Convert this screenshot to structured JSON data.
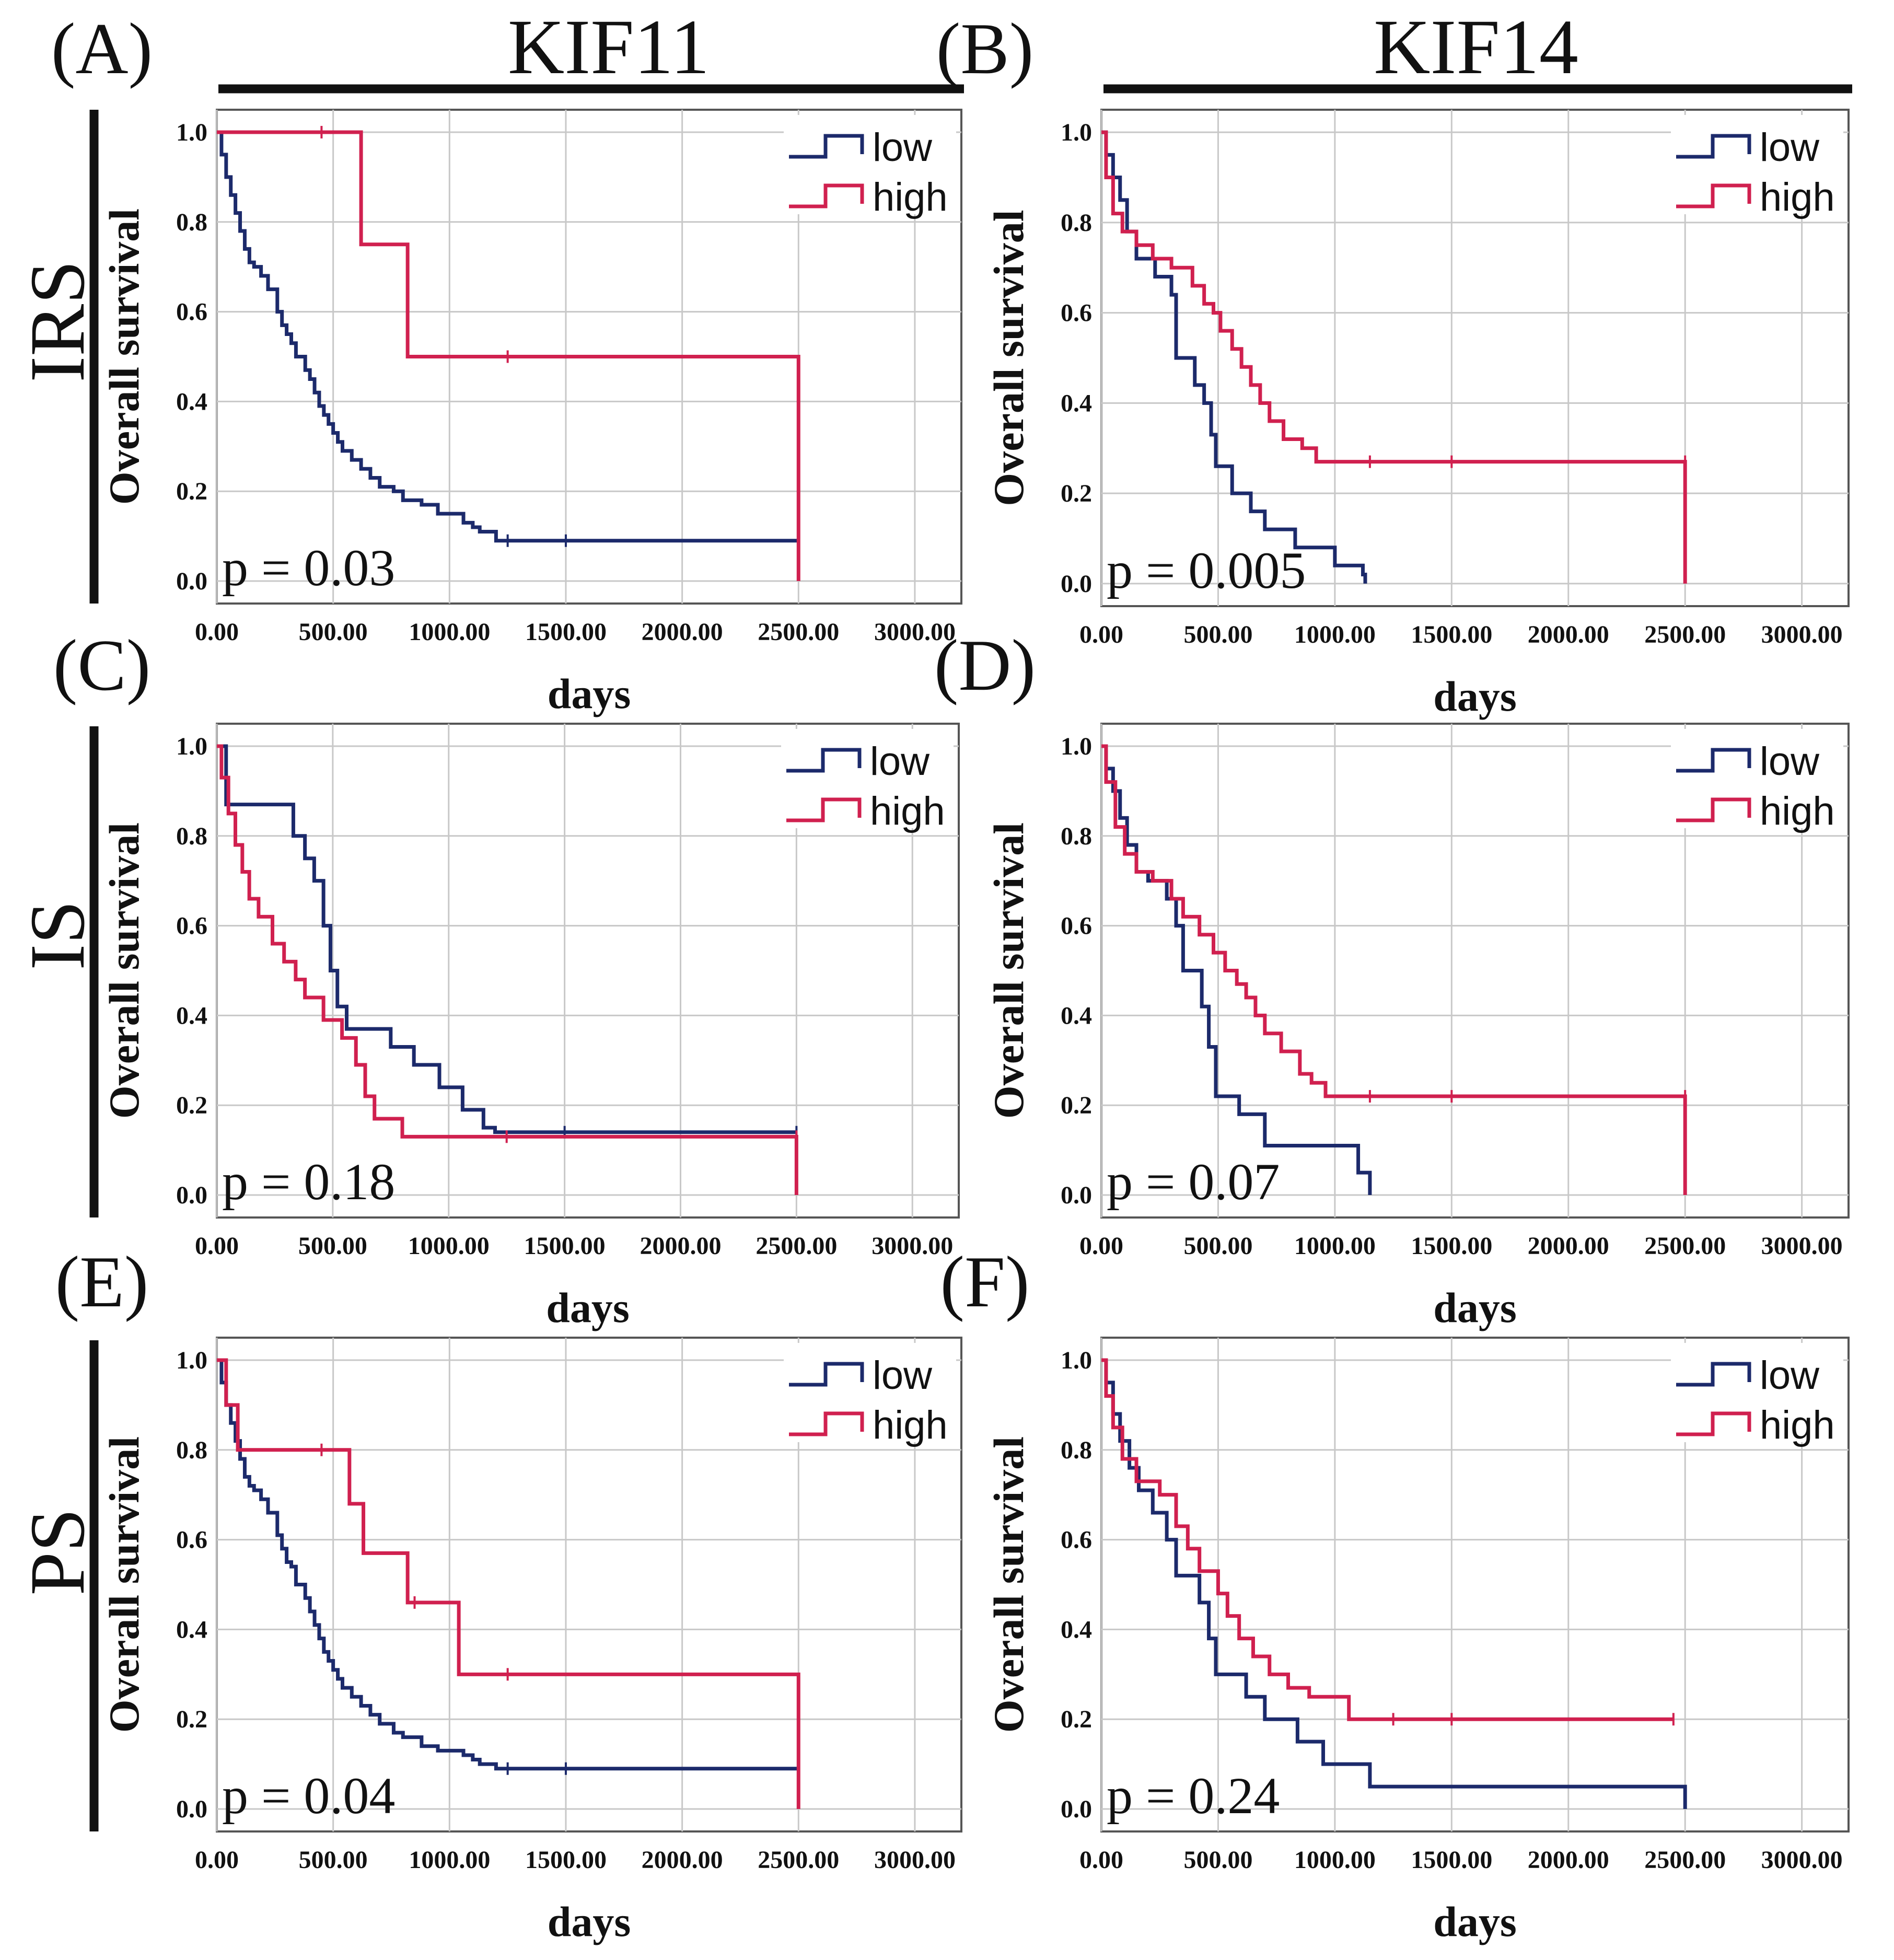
{
  "columns": [
    {
      "gene": "KIF11"
    },
    {
      "gene": "KIF14"
    }
  ],
  "rows": [
    {
      "label": "IRS"
    },
    {
      "label": "IS"
    },
    {
      "label": "PS"
    }
  ],
  "colors": {
    "low": "#1c2a6b",
    "high": "#d0204f",
    "grid": "#c8c8c8",
    "frame": "#555555",
    "text": "#111111"
  },
  "chart_data": [
    {
      "panel": "(A)",
      "type": "line",
      "gene": "KIF11",
      "group": "IRS",
      "xlabel": "days",
      "ylabel": "Overall survival",
      "xlim": [
        0,
        3200
      ],
      "ylim": [
        -0.05,
        1.05
      ],
      "xticks": [
        "0.00",
        "500.00",
        "1000.00",
        "1500.00",
        "2000.00",
        "2500.00",
        "3000.00"
      ],
      "yticks": [
        "0.0",
        "0.2",
        "0.4",
        "0.6",
        "0.8",
        "1.0"
      ],
      "legend": [
        "low",
        "high"
      ],
      "legend_position": "top-right",
      "pvalue": "p = 0.03",
      "series": [
        {
          "name": "low",
          "x": [
            0,
            20,
            40,
            60,
            80,
            100,
            120,
            140,
            160,
            190,
            220,
            260,
            280,
            300,
            320,
            340,
            380,
            400,
            420,
            440,
            460,
            480,
            500,
            520,
            540,
            580,
            620,
            660,
            700,
            760,
            800,
            880,
            950,
            1060,
            1100,
            1130,
            1200,
            2500
          ],
          "y": [
            1.0,
            0.95,
            0.9,
            0.86,
            0.82,
            0.78,
            0.74,
            0.71,
            0.7,
            0.68,
            0.65,
            0.6,
            0.57,
            0.55,
            0.53,
            0.5,
            0.47,
            0.45,
            0.42,
            0.39,
            0.37,
            0.35,
            0.33,
            0.31,
            0.29,
            0.27,
            0.25,
            0.23,
            0.21,
            0.2,
            0.18,
            0.17,
            0.15,
            0.13,
            0.12,
            0.11,
            0.09,
            0.09
          ],
          "censors": [
            [
              1250,
              0.09
            ],
            [
              1500,
              0.09
            ],
            [
              2500,
              0.09
            ]
          ]
        },
        {
          "name": "high",
          "x": [
            0,
            620,
            820,
            2500,
            2500
          ],
          "y": [
            1.0,
            0.75,
            0.5,
            0.5,
            0.0
          ],
          "censors": [
            [
              450,
              1.0
            ],
            [
              1250,
              0.5
            ]
          ]
        }
      ]
    },
    {
      "panel": "(B)",
      "type": "line",
      "gene": "KIF14",
      "group": "IRS",
      "xlabel": "days",
      "ylabel": "Overall survival",
      "xlim": [
        0,
        3200
      ],
      "ylim": [
        -0.05,
        1.05
      ],
      "xticks": [
        "0.00",
        "500.00",
        "1000.00",
        "1500.00",
        "2000.00",
        "2500.00",
        "3000.00"
      ],
      "yticks": [
        "0.0",
        "0.2",
        "0.4",
        "0.6",
        "0.8",
        "1.0"
      ],
      "legend": [
        "low",
        "high"
      ],
      "legend_position": "top-right",
      "pvalue": "p = 0.005",
      "series": [
        {
          "name": "low",
          "x": [
            0,
            20,
            50,
            80,
            110,
            150,
            230,
            300,
            320,
            400,
            440,
            470,
            490,
            560,
            640,
            700,
            830,
            1000,
            1120,
            1130
          ],
          "y": [
            1.0,
            0.95,
            0.9,
            0.85,
            0.78,
            0.72,
            0.68,
            0.64,
            0.5,
            0.44,
            0.4,
            0.33,
            0.26,
            0.2,
            0.16,
            0.12,
            0.08,
            0.04,
            0.02,
            0.0
          ],
          "censors": []
        },
        {
          "name": "high",
          "x": [
            0,
            20,
            50,
            90,
            150,
            220,
            300,
            390,
            440,
            480,
            510,
            560,
            600,
            640,
            680,
            720,
            780,
            860,
            920,
            2500,
            2500
          ],
          "y": [
            1.0,
            0.9,
            0.82,
            0.78,
            0.75,
            0.72,
            0.7,
            0.66,
            0.62,
            0.6,
            0.56,
            0.52,
            0.48,
            0.44,
            0.4,
            0.36,
            0.32,
            0.3,
            0.27,
            0.27,
            0.0
          ],
          "censors": [
            [
              1150,
              0.27
            ],
            [
              1500,
              0.27
            ],
            [
              2500,
              0.27
            ]
          ]
        }
      ]
    },
    {
      "panel": "(C)",
      "type": "line",
      "gene": "KIF11",
      "group": "IS",
      "xlabel": "days",
      "ylabel": "Overall survival",
      "xlim": [
        0,
        3200
      ],
      "ylim": [
        -0.05,
        1.05
      ],
      "xticks": [
        "0.00",
        "500.00",
        "1000.00",
        "1500.00",
        "2000.00",
        "2500.00",
        "3000.00"
      ],
      "yticks": [
        "0.0",
        "0.2",
        "0.4",
        "0.6",
        "0.8",
        "1.0"
      ],
      "legend": [
        "low",
        "high"
      ],
      "legend_position": "top-right",
      "pvalue": "p = 0.18",
      "series": [
        {
          "name": "low",
          "x": [
            0,
            40,
            330,
            380,
            420,
            460,
            490,
            520,
            560,
            750,
            850,
            960,
            1060,
            1150,
            1200,
            2500
          ],
          "y": [
            1.0,
            0.87,
            0.8,
            0.75,
            0.7,
            0.6,
            0.5,
            0.42,
            0.37,
            0.33,
            0.29,
            0.24,
            0.19,
            0.15,
            0.14,
            0.14
          ],
          "censors": [
            [
              1500,
              0.14
            ],
            [
              2500,
              0.14
            ]
          ]
        },
        {
          "name": "high",
          "x": [
            0,
            20,
            50,
            80,
            110,
            140,
            180,
            240,
            290,
            340,
            380,
            460,
            540,
            600,
            640,
            680,
            800,
            2500,
            2500
          ],
          "y": [
            1.0,
            0.93,
            0.85,
            0.78,
            0.72,
            0.66,
            0.62,
            0.56,
            0.52,
            0.48,
            0.44,
            0.39,
            0.35,
            0.29,
            0.22,
            0.17,
            0.13,
            0.13,
            0.0
          ],
          "censors": [
            [
              1250,
              0.13
            ],
            [
              2500,
              0.13
            ]
          ]
        }
      ]
    },
    {
      "panel": "(D)",
      "type": "line",
      "gene": "KIF14",
      "group": "IS",
      "xlabel": "days",
      "ylabel": "Overall survival",
      "xlim": [
        0,
        3200
      ],
      "ylim": [
        -0.05,
        1.05
      ],
      "xticks": [
        "0.00",
        "500.00",
        "1000.00",
        "1500.00",
        "2000.00",
        "2500.00",
        "3000.00"
      ],
      "yticks": [
        "0.0",
        "0.2",
        "0.4",
        "0.6",
        "0.8",
        "1.0"
      ],
      "legend": [
        "low",
        "high"
      ],
      "legend_position": "top-right",
      "pvalue": "p = 0.07",
      "series": [
        {
          "name": "low",
          "x": [
            0,
            20,
            50,
            80,
            110,
            150,
            200,
            280,
            320,
            350,
            430,
            460,
            490,
            590,
            700,
            1000,
            1100,
            1150
          ],
          "y": [
            1.0,
            0.95,
            0.9,
            0.84,
            0.78,
            0.72,
            0.7,
            0.66,
            0.6,
            0.5,
            0.42,
            0.33,
            0.22,
            0.18,
            0.11,
            0.11,
            0.05,
            0.0
          ],
          "censors": []
        },
        {
          "name": "high",
          "x": [
            0,
            20,
            60,
            100,
            150,
            220,
            300,
            350,
            420,
            480,
            530,
            580,
            620,
            660,
            700,
            770,
            850,
            900,
            960,
            2500,
            2500
          ],
          "y": [
            1.0,
            0.92,
            0.82,
            0.76,
            0.72,
            0.7,
            0.66,
            0.62,
            0.58,
            0.54,
            0.5,
            0.47,
            0.44,
            0.4,
            0.36,
            0.32,
            0.27,
            0.25,
            0.22,
            0.22,
            0.0
          ],
          "censors": [
            [
              1150,
              0.22
            ],
            [
              1500,
              0.22
            ],
            [
              2500,
              0.22
            ]
          ]
        }
      ]
    },
    {
      "panel": "(E)",
      "type": "line",
      "gene": "KIF11",
      "group": "PS",
      "xlabel": "days",
      "ylabel": "Overall survival",
      "xlim": [
        0,
        3200
      ],
      "ylim": [
        -0.05,
        1.05
      ],
      "xticks": [
        "0.00",
        "500.00",
        "1000.00",
        "1500.00",
        "2000.00",
        "2500.00",
        "3000.00"
      ],
      "yticks": [
        "0.0",
        "0.2",
        "0.4",
        "0.6",
        "0.8",
        "1.0"
      ],
      "legend": [
        "low",
        "high"
      ],
      "legend_position": "top-right",
      "pvalue": "p = 0.04",
      "series": [
        {
          "name": "low",
          "x": [
            0,
            20,
            40,
            60,
            80,
            100,
            120,
            140,
            160,
            190,
            220,
            260,
            280,
            300,
            320,
            340,
            380,
            400,
            420,
            440,
            460,
            480,
            500,
            520,
            540,
            580,
            620,
            660,
            700,
            760,
            800,
            880,
            950,
            1060,
            1100,
            1130,
            1200,
            2500
          ],
          "y": [
            1.0,
            0.95,
            0.9,
            0.86,
            0.82,
            0.78,
            0.74,
            0.72,
            0.71,
            0.69,
            0.66,
            0.61,
            0.58,
            0.55,
            0.54,
            0.5,
            0.47,
            0.44,
            0.41,
            0.38,
            0.35,
            0.33,
            0.31,
            0.29,
            0.27,
            0.25,
            0.23,
            0.21,
            0.19,
            0.17,
            0.16,
            0.14,
            0.13,
            0.12,
            0.11,
            0.1,
            0.09,
            0.09
          ],
          "censors": [
            [
              1250,
              0.09
            ],
            [
              1500,
              0.09
            ],
            [
              2500,
              0.09
            ]
          ]
        },
        {
          "name": "high",
          "x": [
            0,
            40,
            90,
            570,
            630,
            820,
            1040,
            2500,
            2500
          ],
          "y": [
            1.0,
            0.9,
            0.8,
            0.68,
            0.57,
            0.46,
            0.3,
            0.3,
            0.0
          ],
          "censors": [
            [
              450,
              0.8
            ],
            [
              850,
              0.46
            ],
            [
              1250,
              0.3
            ]
          ]
        }
      ]
    },
    {
      "panel": "(F)",
      "type": "line",
      "gene": "KIF14",
      "group": "PS",
      "xlabel": "days",
      "ylabel": "Overall survival",
      "xlim": [
        0,
        3200
      ],
      "ylim": [
        -0.05,
        1.05
      ],
      "xticks": [
        "0.00",
        "500.00",
        "1000.00",
        "1500.00",
        "2000.00",
        "2500.00",
        "3000.00"
      ],
      "yticks": [
        "0.0",
        "0.2",
        "0.4",
        "0.6",
        "0.8",
        "1.0"
      ],
      "legend": [
        "low",
        "high"
      ],
      "legend_position": "top-right",
      "pvalue": "p = 0.24",
      "series": [
        {
          "name": "low",
          "x": [
            0,
            20,
            50,
            80,
            120,
            160,
            220,
            280,
            320,
            420,
            460,
            490,
            620,
            700,
            840,
            950,
            1150,
            2500,
            2500
          ],
          "y": [
            1.0,
            0.95,
            0.88,
            0.82,
            0.76,
            0.71,
            0.66,
            0.6,
            0.52,
            0.46,
            0.38,
            0.3,
            0.25,
            0.2,
            0.15,
            0.1,
            0.05,
            0.05,
            0.0
          ],
          "censors": []
        },
        {
          "name": "high",
          "x": [
            0,
            20,
            50,
            90,
            150,
            200,
            250,
            320,
            370,
            420,
            500,
            540,
            590,
            650,
            720,
            800,
            890,
            1060,
            2450
          ],
          "y": [
            1.0,
            0.92,
            0.85,
            0.78,
            0.73,
            0.73,
            0.7,
            0.63,
            0.58,
            0.53,
            0.48,
            0.43,
            0.38,
            0.34,
            0.3,
            0.27,
            0.25,
            0.2,
            0.2
          ],
          "censors": [
            [
              1250,
              0.2
            ],
            [
              1500,
              0.2
            ],
            [
              2450,
              0.2
            ]
          ]
        }
      ]
    }
  ]
}
